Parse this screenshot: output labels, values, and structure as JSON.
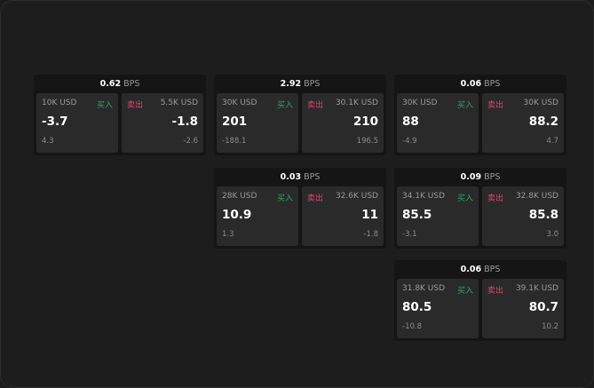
{
  "cards": [
    {
      "bps": "0.62",
      "unit": "BPS",
      "buy": {
        "size": "10K USD",
        "label": "买入",
        "price": "-3.7",
        "change": "4.3"
      },
      "sell": {
        "size": "5.5K USD",
        "label": "卖出",
        "price": "-1.8",
        "change": "-2.6"
      }
    },
    {
      "bps": "2.92",
      "unit": "BPS",
      "buy": {
        "size": "30K USD",
        "label": "买入",
        "price": "201",
        "change": "-188.1"
      },
      "sell": {
        "size": "30.1K USD",
        "label": "卖出",
        "price": "210",
        "change": "196.5"
      }
    },
    {
      "bps": "0.06",
      "unit": "BPS",
      "buy": {
        "size": "30K USD",
        "label": "买入",
        "price": "88",
        "change": "-4.9"
      },
      "sell": {
        "size": "30K USD",
        "label": "卖出",
        "price": "88.2",
        "change": "4.7"
      }
    },
    {
      "bps": "0.03",
      "unit": "BPS",
      "buy": {
        "size": "28K USD",
        "label": "买入",
        "price": "10.9",
        "change": "1.3"
      },
      "sell": {
        "size": "32.6K USD",
        "label": "卖出",
        "price": "11",
        "change": "-1.8"
      }
    },
    {
      "bps": "0.09",
      "unit": "BPS",
      "buy": {
        "size": "34.1K USD",
        "label": "买入",
        "price": "85.5",
        "change": "-3.1"
      },
      "sell": {
        "size": "32.8K USD",
        "label": "卖出",
        "price": "85.8",
        "change": "3.0"
      }
    },
    {
      "bps": "0.06",
      "unit": "BPS",
      "buy": {
        "size": "31.8K USD",
        "label": "买入",
        "price": "80.5",
        "change": "-10.8"
      },
      "sell": {
        "size": "39.1K USD",
        "label": "卖出",
        "price": "80.7",
        "change": "10.2"
      }
    }
  ],
  "colors": {
    "buy": "#2fa56a",
    "sell": "#e0456b"
  }
}
